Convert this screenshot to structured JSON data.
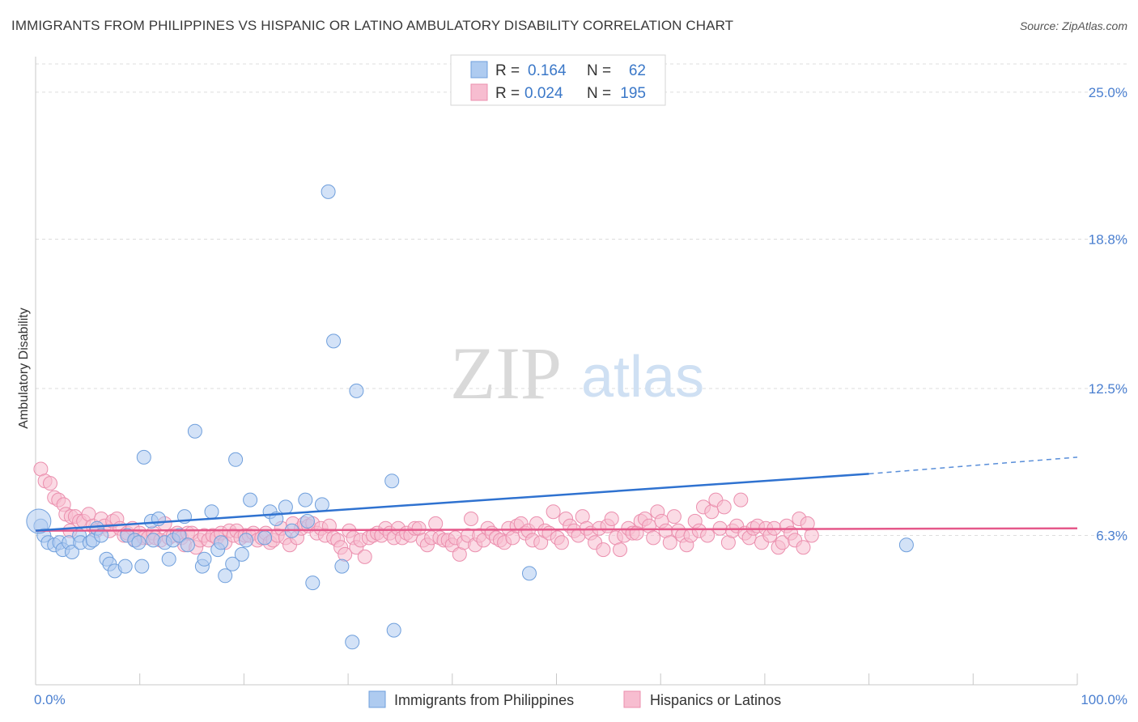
{
  "title": "IMMIGRANTS FROM PHILIPPINES VS HISPANIC OR LATINO AMBULATORY DISABILITY CORRELATION CHART",
  "source": "Source: ZipAtlas.com",
  "watermark": {
    "zip": "ZIP",
    "atlas": "atlas"
  },
  "colors": {
    "blue_fill": "#aecbf0",
    "blue_stroke": "#6f9fdc",
    "blue_line": "#2f72d0",
    "pink_fill": "#f7bdd0",
    "pink_stroke": "#eb8fae",
    "pink_line": "#e5588a",
    "tick_text": "#4a7fd0",
    "grid": "#dddddd"
  },
  "stats": [
    {
      "r_label": "R =",
      "r_value": "0.164",
      "n_label": "N =",
      "n_value": "62",
      "series": "blue"
    },
    {
      "r_label": "R =",
      "r_value": "0.024",
      "n_label": "N =",
      "n_value": "195",
      "series": "pink"
    }
  ],
  "legend": [
    "Immigrants from Philippines",
    "Hispanics or Latinos"
  ],
  "chart_data": {
    "type": "scatter",
    "xlabel": "",
    "ylabel": "Ambulatory Disability",
    "xlim": [
      0,
      100
    ],
    "ylim": [
      0,
      26.5
    ],
    "x_tick_labels": [
      {
        "value": 0,
        "label": "0.0%"
      },
      {
        "value": 100,
        "label": "100.0%"
      }
    ],
    "y_ticks": [
      {
        "value": 6.3,
        "label": "6.3%"
      },
      {
        "value": 12.5,
        "label": "12.5%"
      },
      {
        "value": 18.8,
        "label": "18.8%"
      },
      {
        "value": 25.0,
        "label": "25.0%"
      }
    ],
    "grid": "horizontal dashed",
    "legend_position": "bottom-center",
    "series": [
      {
        "name": "Immigrants from Philippines",
        "color": "blue",
        "trend": {
          "x": [
            0,
            80
          ],
          "y": [
            6.5,
            8.9
          ],
          "dashed_to": [
            100,
            9.6
          ]
        },
        "points": [
          [
            0.5,
            6.7
          ],
          [
            0.8,
            6.3
          ],
          [
            1.2,
            6.0
          ],
          [
            1.8,
            5.9
          ],
          [
            2.3,
            6.0
          ],
          [
            2.6,
            5.7
          ],
          [
            3.2,
            6.0
          ],
          [
            3.5,
            5.6
          ],
          [
            4.2,
            6.3
          ],
          [
            4.3,
            6.0
          ],
          [
            5.2,
            6.0
          ],
          [
            5.5,
            6.1
          ],
          [
            5.9,
            6.6
          ],
          [
            6.3,
            6.3
          ],
          [
            6.8,
            5.3
          ],
          [
            7.1,
            5.1
          ],
          [
            7.6,
            4.8
          ],
          [
            8.6,
            5.0
          ],
          [
            8.8,
            6.3
          ],
          [
            9.5,
            6.1
          ],
          [
            9.9,
            6.0
          ],
          [
            10.2,
            5.0
          ],
          [
            10.4,
            9.6
          ],
          [
            11.1,
            6.9
          ],
          [
            11.3,
            6.1
          ],
          [
            11.8,
            7.0
          ],
          [
            12.4,
            6.0
          ],
          [
            12.8,
            5.3
          ],
          [
            13.2,
            6.1
          ],
          [
            13.8,
            6.3
          ],
          [
            14.3,
            7.1
          ],
          [
            14.6,
            5.9
          ],
          [
            15.3,
            10.7
          ],
          [
            16.0,
            5.0
          ],
          [
            16.2,
            5.3
          ],
          [
            16.9,
            7.3
          ],
          [
            17.5,
            5.7
          ],
          [
            17.8,
            6.0
          ],
          [
            18.2,
            4.6
          ],
          [
            18.9,
            5.1
          ],
          [
            19.2,
            9.5
          ],
          [
            19.8,
            5.5
          ],
          [
            20.2,
            6.1
          ],
          [
            20.6,
            7.8
          ],
          [
            22.0,
            6.2
          ],
          [
            22.5,
            7.3
          ],
          [
            23.1,
            7.0
          ],
          [
            24.0,
            7.5
          ],
          [
            24.6,
            6.5
          ],
          [
            25.9,
            7.8
          ],
          [
            26.1,
            6.9
          ],
          [
            26.6,
            4.3
          ],
          [
            27.5,
            7.6
          ],
          [
            28.1,
            20.8
          ],
          [
            28.6,
            14.5
          ],
          [
            29.4,
            5.0
          ],
          [
            30.4,
            1.8
          ],
          [
            30.8,
            12.4
          ],
          [
            34.2,
            8.6
          ],
          [
            34.4,
            2.3
          ],
          [
            47.4,
            4.7
          ],
          [
            83.6,
            5.9
          ]
        ]
      },
      {
        "name": "Hispanics or Latinos",
        "color": "pink",
        "trend": {
          "x": [
            0,
            100
          ],
          "y": [
            6.5,
            6.6
          ]
        },
        "points": [
          [
            0.5,
            9.1
          ],
          [
            0.9,
            8.6
          ],
          [
            1.4,
            8.5
          ],
          [
            1.8,
            7.9
          ],
          [
            2.2,
            7.8
          ],
          [
            2.7,
            7.6
          ],
          [
            2.9,
            7.2
          ],
          [
            3.3,
            6.5
          ],
          [
            3.4,
            7.1
          ],
          [
            3.8,
            7.1
          ],
          [
            4.2,
            6.9
          ],
          [
            4.6,
            6.9
          ],
          [
            5.1,
            7.2
          ],
          [
            5.5,
            6.7
          ],
          [
            5.8,
            6.5
          ],
          [
            6.3,
            7.0
          ],
          [
            6.6,
            6.7
          ],
          [
            7.1,
            6.5
          ],
          [
            7.4,
            6.9
          ],
          [
            7.8,
            7.0
          ],
          [
            8.1,
            6.6
          ],
          [
            8.5,
            6.3
          ],
          [
            8.8,
            6.4
          ],
          [
            9.3,
            6.6
          ],
          [
            9.6,
            6.1
          ],
          [
            10.0,
            6.4
          ],
          [
            10.4,
            6.2
          ],
          [
            10.8,
            6.2
          ],
          [
            11.3,
            6.4
          ],
          [
            11.5,
            6.2
          ],
          [
            12.0,
            6.1
          ],
          [
            12.4,
            6.8
          ],
          [
            12.8,
            6.2
          ],
          [
            13.2,
            6.3
          ],
          [
            13.6,
            6.4
          ],
          [
            14.0,
            6.2
          ],
          [
            14.3,
            5.9
          ],
          [
            14.6,
            6.4
          ],
          [
            15.0,
            6.4
          ],
          [
            15.4,
            5.8
          ],
          [
            15.8,
            6.1
          ],
          [
            16.2,
            6.3
          ],
          [
            16.6,
            6.1
          ],
          [
            17.0,
            6.3
          ],
          [
            17.4,
            6.2
          ],
          [
            17.8,
            6.4
          ],
          [
            18.2,
            6.0
          ],
          [
            18.6,
            6.5
          ],
          [
            19.0,
            6.3
          ],
          [
            19.3,
            6.5
          ],
          [
            19.7,
            6.2
          ],
          [
            20.1,
            6.3
          ],
          [
            20.5,
            6.3
          ],
          [
            20.9,
            6.4
          ],
          [
            21.3,
            6.1
          ],
          [
            21.7,
            6.2
          ],
          [
            22.1,
            6.4
          ],
          [
            22.5,
            6.0
          ],
          [
            22.8,
            6.1
          ],
          [
            23.2,
            6.3
          ],
          [
            23.6,
            6.6
          ],
          [
            24.0,
            6.2
          ],
          [
            24.4,
            5.9
          ],
          [
            24.7,
            6.8
          ],
          [
            25.1,
            6.2
          ],
          [
            25.5,
            6.6
          ],
          [
            25.8,
            6.8
          ],
          [
            26.2,
            6.7
          ],
          [
            26.6,
            6.8
          ],
          [
            27.0,
            6.4
          ],
          [
            27.4,
            6.6
          ],
          [
            27.8,
            6.3
          ],
          [
            28.2,
            6.7
          ],
          [
            28.6,
            6.2
          ],
          [
            29.0,
            6.1
          ],
          [
            29.3,
            5.8
          ],
          [
            29.7,
            5.5
          ],
          [
            30.1,
            6.5
          ],
          [
            30.5,
            6.2
          ],
          [
            30.8,
            5.8
          ],
          [
            31.2,
            6.1
          ],
          [
            31.6,
            5.4
          ],
          [
            32.0,
            6.2
          ],
          [
            32.4,
            6.3
          ],
          [
            32.8,
            6.4
          ],
          [
            33.2,
            6.3
          ],
          [
            33.6,
            6.6
          ],
          [
            34.0,
            6.4
          ],
          [
            34.4,
            6.2
          ],
          [
            34.8,
            6.6
          ],
          [
            35.2,
            6.2
          ],
          [
            35.6,
            6.4
          ],
          [
            36.0,
            6.3
          ],
          [
            36.4,
            6.6
          ],
          [
            36.8,
            6.6
          ],
          [
            37.2,
            6.1
          ],
          [
            37.6,
            5.9
          ],
          [
            38.0,
            6.2
          ],
          [
            38.4,
            6.8
          ],
          [
            38.8,
            6.2
          ],
          [
            39.2,
            6.1
          ],
          [
            39.6,
            6.1
          ],
          [
            40.0,
            5.9
          ],
          [
            40.3,
            6.2
          ],
          [
            40.7,
            5.5
          ],
          [
            41.1,
            6.0
          ],
          [
            41.5,
            6.3
          ],
          [
            41.8,
            7.0
          ],
          [
            42.2,
            5.9
          ],
          [
            42.6,
            6.3
          ],
          [
            43.0,
            6.1
          ],
          [
            43.4,
            6.6
          ],
          [
            43.8,
            6.4
          ],
          [
            44.2,
            6.2
          ],
          [
            44.6,
            6.1
          ],
          [
            45.0,
            6.0
          ],
          [
            45.4,
            6.6
          ],
          [
            45.8,
            6.2
          ],
          [
            46.2,
            6.7
          ],
          [
            46.6,
            6.8
          ],
          [
            47.0,
            6.4
          ],
          [
            47.3,
            6.5
          ],
          [
            47.7,
            6.1
          ],
          [
            48.1,
            6.8
          ],
          [
            48.5,
            6.0
          ],
          [
            48.9,
            6.5
          ],
          [
            49.3,
            6.4
          ],
          [
            49.7,
            7.3
          ],
          [
            50.1,
            6.2
          ],
          [
            50.5,
            6.0
          ],
          [
            50.9,
            7.0
          ],
          [
            51.3,
            6.7
          ],
          [
            51.7,
            6.5
          ],
          [
            52.1,
            6.3
          ],
          [
            52.5,
            7.1
          ],
          [
            52.9,
            6.6
          ],
          [
            53.3,
            6.4
          ],
          [
            53.7,
            6.0
          ],
          [
            54.1,
            6.6
          ],
          [
            54.5,
            5.7
          ],
          [
            54.9,
            6.7
          ],
          [
            55.3,
            7.0
          ],
          [
            55.7,
            6.2
          ],
          [
            56.1,
            5.7
          ],
          [
            56.5,
            6.3
          ],
          [
            56.9,
            6.6
          ],
          [
            57.3,
            6.4
          ],
          [
            57.7,
            6.4
          ],
          [
            58.1,
            6.9
          ],
          [
            58.5,
            7.0
          ],
          [
            58.9,
            6.7
          ],
          [
            59.3,
            6.2
          ],
          [
            59.7,
            7.3
          ],
          [
            60.1,
            6.9
          ],
          [
            60.5,
            6.5
          ],
          [
            60.9,
            6.0
          ],
          [
            61.3,
            7.1
          ],
          [
            61.7,
            6.5
          ],
          [
            62.1,
            6.3
          ],
          [
            62.5,
            5.9
          ],
          [
            62.9,
            6.3
          ],
          [
            63.3,
            6.9
          ],
          [
            63.7,
            6.5
          ],
          [
            64.1,
            7.5
          ],
          [
            64.5,
            6.3
          ],
          [
            64.9,
            7.3
          ],
          [
            65.3,
            7.8
          ],
          [
            65.7,
            6.6
          ],
          [
            66.1,
            7.5
          ],
          [
            66.5,
            6.0
          ],
          [
            66.9,
            6.5
          ],
          [
            67.3,
            6.7
          ],
          [
            67.7,
            7.8
          ],
          [
            68.1,
            6.4
          ],
          [
            68.5,
            6.2
          ],
          [
            68.9,
            6.6
          ],
          [
            69.3,
            6.7
          ],
          [
            69.7,
            6.0
          ],
          [
            70.1,
            6.6
          ],
          [
            70.5,
            6.3
          ],
          [
            70.9,
            6.6
          ],
          [
            71.3,
            5.8
          ],
          [
            71.7,
            6.0
          ],
          [
            72.1,
            6.7
          ],
          [
            72.5,
            6.4
          ],
          [
            72.9,
            6.1
          ],
          [
            73.3,
            7.0
          ],
          [
            73.7,
            5.8
          ],
          [
            74.1,
            6.8
          ],
          [
            74.5,
            6.3
          ]
        ]
      }
    ]
  }
}
